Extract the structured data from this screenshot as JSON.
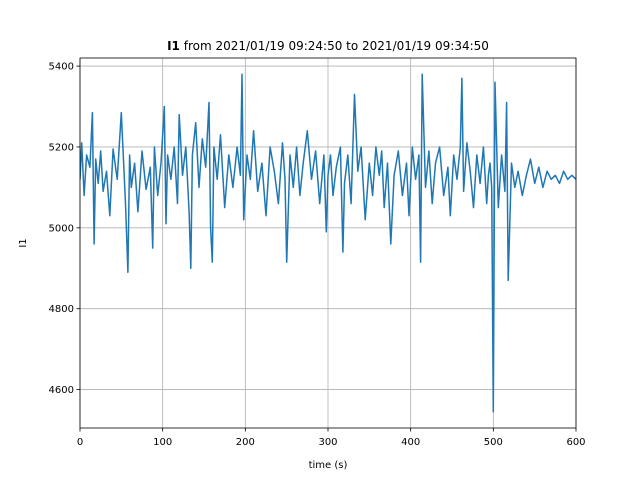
{
  "chart_data": {
    "type": "line",
    "title_bold": "I1",
    "title_rest": " from 2021/01/19 09:24:50 to 2021/01/19 09:34:50",
    "xlabel": "time (s)",
    "ylabel": "I1",
    "xlim": [
      0,
      600
    ],
    "ylim": [
      4505,
      5420
    ],
    "xticks": [
      0,
      100,
      200,
      300,
      400,
      500,
      600
    ],
    "yticks": [
      4600,
      4800,
      5000,
      5200,
      5400
    ],
    "grid": true,
    "color": "#1f77b4",
    "series": [
      {
        "x": [
          0,
          2,
          5,
          8,
          12,
          15,
          17,
          19,
          22,
          25,
          28,
          32,
          36,
          40,
          45,
          50,
          55,
          58,
          60,
          62,
          66,
          70,
          75,
          80,
          85,
          88,
          90,
          94,
          98,
          102,
          104,
          106,
          110,
          114,
          118,
          120,
          124,
          128,
          132,
          134,
          136,
          140,
          144,
          148,
          152,
          156,
          158,
          160,
          162,
          166,
          170,
          175,
          180,
          185,
          190,
          194,
          196,
          198,
          202,
          206,
          210,
          215,
          220,
          225,
          230,
          235,
          240,
          245,
          248,
          250,
          254,
          258,
          262,
          266,
          270,
          275,
          280,
          285,
          290,
          295,
          298,
          300,
          303,
          306,
          310,
          315,
          318,
          320,
          324,
          328,
          332,
          336,
          340,
          345,
          350,
          354,
          358,
          362,
          365,
          368,
          372,
          376,
          380,
          385,
          390,
          395,
          398,
          402,
          406,
          410,
          412,
          414,
          418,
          422,
          426,
          430,
          435,
          440,
          445,
          448,
          452,
          456,
          460,
          462,
          464,
          468,
          472,
          476,
          480,
          484,
          488,
          492,
          494,
          496,
          498,
          500,
          502,
          506,
          510,
          514,
          516,
          518,
          522,
          526,
          530,
          535,
          540,
          545,
          550,
          555,
          560,
          565,
          570,
          575,
          580,
          585,
          590,
          595,
          600
        ],
        "y": [
          5120,
          5210,
          5080,
          5180,
          5150,
          5285,
          4960,
          5170,
          5110,
          5190,
          5090,
          5140,
          5030,
          5195,
          5120,
          5285,
          5060,
          4890,
          5180,
          5100,
          5160,
          5040,
          5190,
          5095,
          5150,
          4950,
          5200,
          5080,
          5160,
          5300,
          5010,
          5180,
          5120,
          5200,
          5060,
          5280,
          5130,
          5200,
          5040,
          4900,
          5180,
          5260,
          5100,
          5220,
          5150,
          5310,
          5000,
          4915,
          5200,
          5120,
          5230,
          5050,
          5180,
          5100,
          5200,
          5130,
          5380,
          5020,
          5180,
          5120,
          5240,
          5090,
          5160,
          5030,
          5200,
          5140,
          5060,
          5210,
          5120,
          4915,
          5180,
          5100,
          5200,
          5080,
          5160,
          5240,
          5120,
          5190,
          5060,
          5180,
          4990,
          5130,
          5180,
          5080,
          5150,
          5200,
          4940,
          5110,
          5180,
          5060,
          5330,
          5140,
          5200,
          5020,
          5160,
          5080,
          5200,
          5130,
          5190,
          5050,
          5160,
          4960,
          5130,
          5190,
          5080,
          5160,
          5030,
          5200,
          5120,
          5180,
          4915,
          5380,
          5100,
          5190,
          5060,
          5160,
          5200,
          5080,
          5150,
          5030,
          5180,
          5120,
          5200,
          5370,
          5090,
          5210,
          5140,
          5050,
          5180,
          5110,
          5200,
          5060,
          5130,
          5160,
          5100,
          4545,
          5360,
          5050,
          5180,
          5090,
          5310,
          4870,
          5160,
          5100,
          5140,
          5080,
          5130,
          5170,
          5110,
          5150,
          5100,
          5140,
          5120,
          5130,
          5110,
          5140,
          5120,
          5130,
          5120
        ]
      }
    ]
  }
}
